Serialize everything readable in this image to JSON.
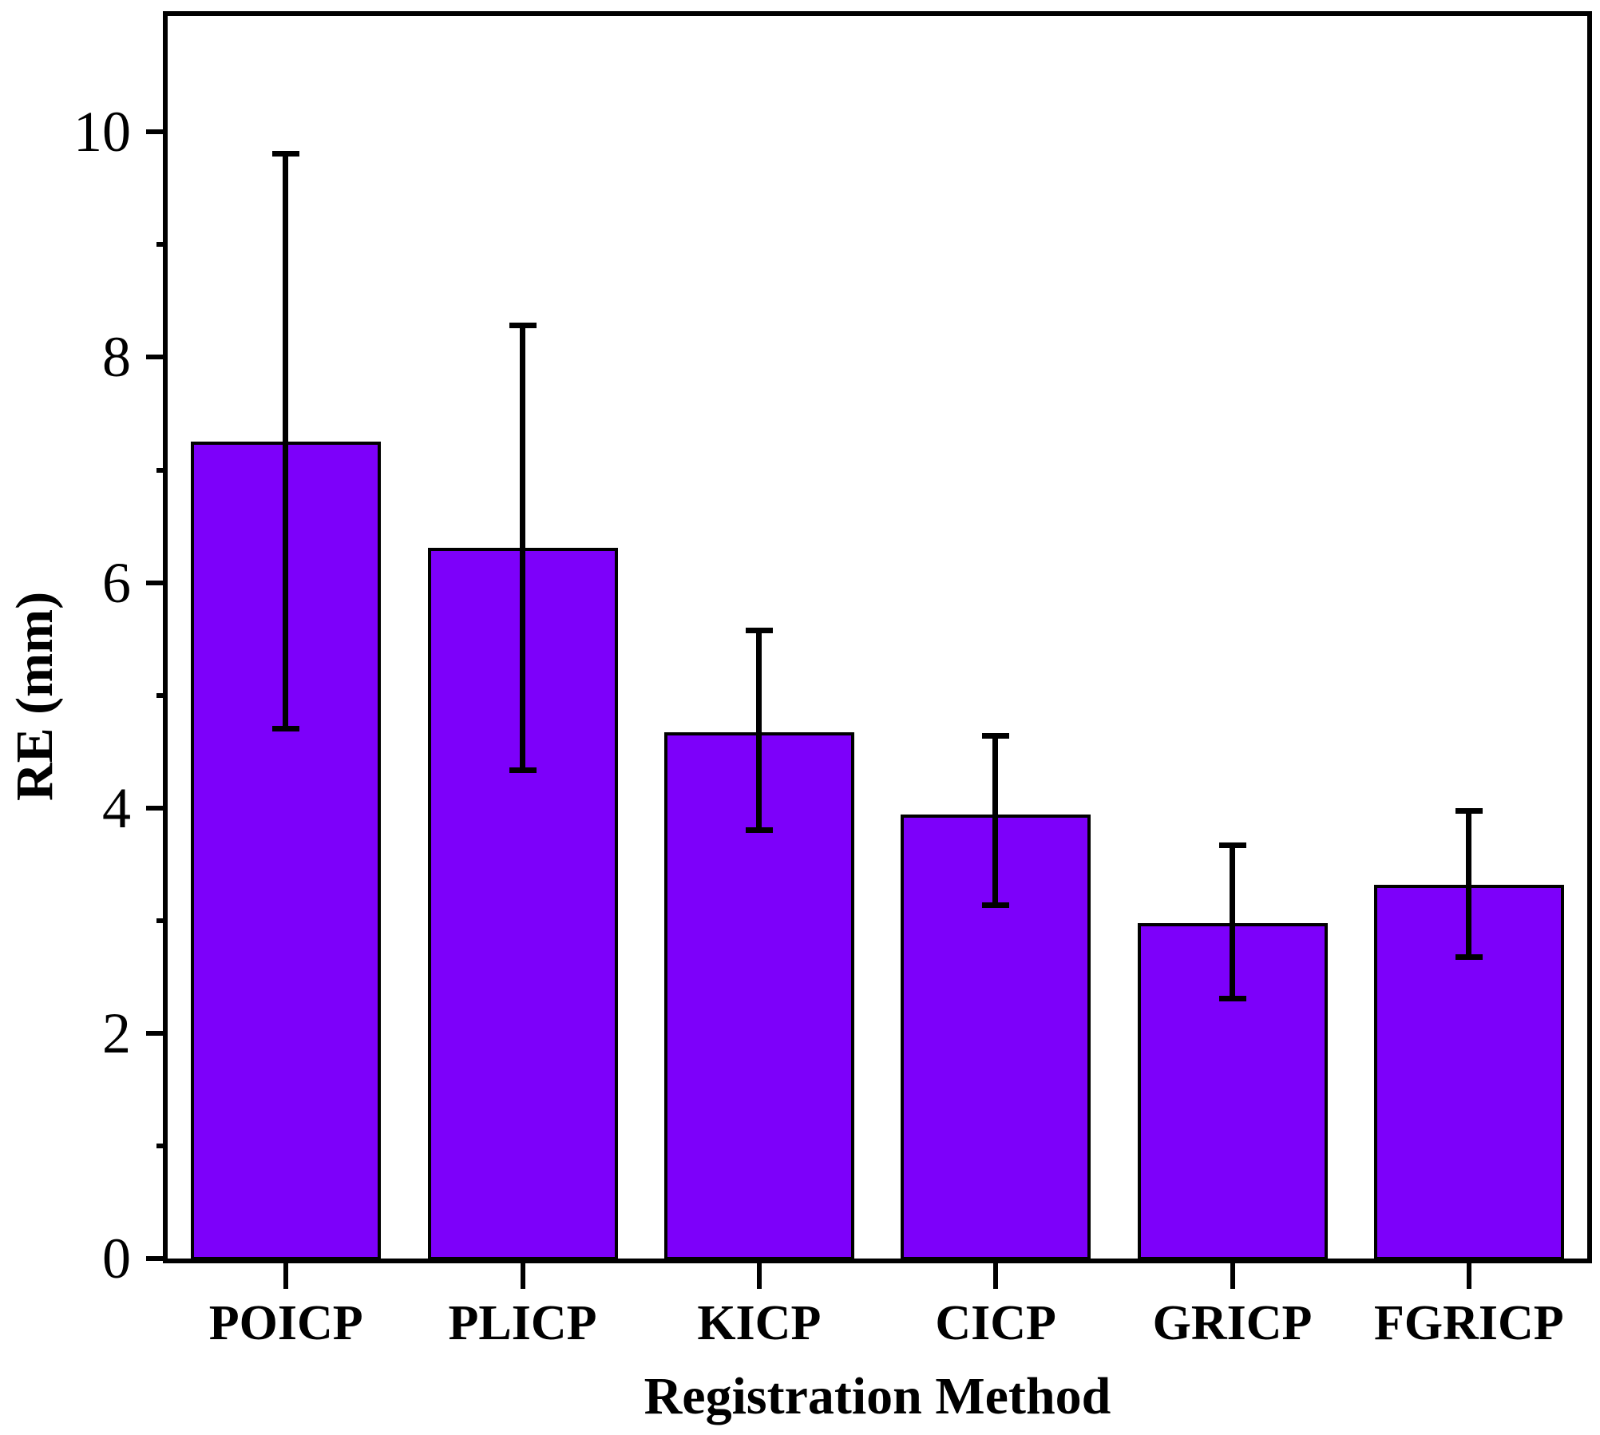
{
  "chart_data": {
    "type": "bar",
    "title": "",
    "xlabel": "Registration Method",
    "ylabel": "RE (mm)",
    "categories": [
      "POICP",
      "PLICP",
      "KICP",
      "CICP",
      "GRICP",
      "FGRICP"
    ],
    "values": [
      7.25,
      6.31,
      4.67,
      3.94,
      2.98,
      3.32
    ],
    "error_plus": [
      2.56,
      1.98,
      0.91,
      0.7,
      0.69,
      0.66
    ],
    "error_minus": [
      2.54,
      1.97,
      0.86,
      0.8,
      0.67,
      0.64
    ],
    "ylim": [
      0,
      11.03
    ],
    "yticks_major": [
      0,
      2,
      4,
      6,
      8,
      10
    ],
    "yticks_minor": [
      1,
      3,
      5,
      7,
      9
    ],
    "grid": false,
    "legend": "none",
    "bar_color": "#7D00FA",
    "bar_edge_color": "#000000",
    "error_color": "#000000",
    "frame_color": "#000000",
    "background_color": "#FFFFFF"
  }
}
